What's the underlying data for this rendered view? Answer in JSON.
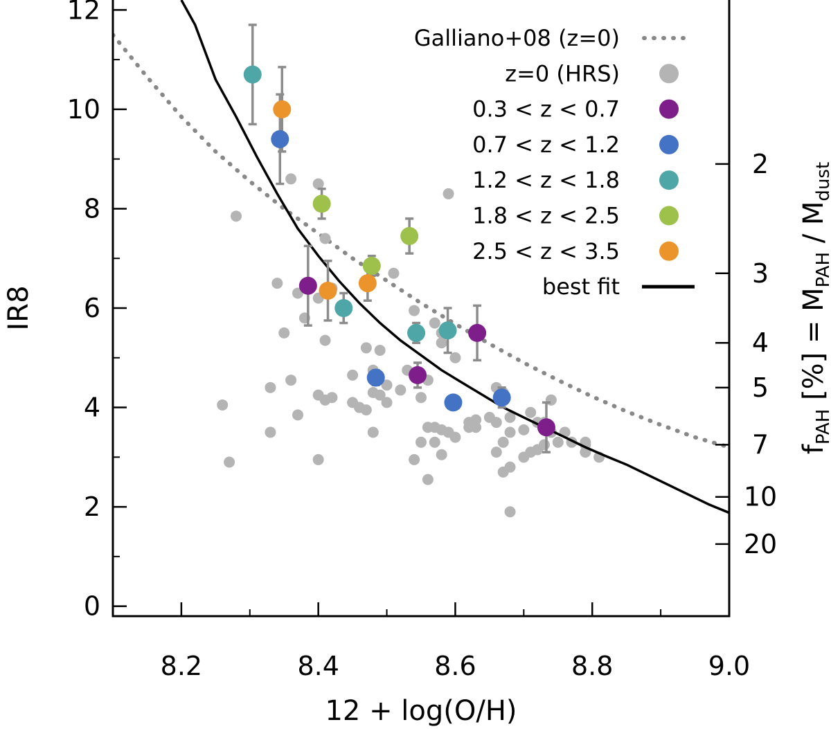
{
  "chart_data": {
    "type": "scatter",
    "xlabel": "12 + log(O/H)",
    "ylabel": "IR8",
    "y2label": {
      "prefix": "f",
      "prefix_sub": "PAH",
      "middle": " [%] = M",
      "middle_sub": "PAH",
      "sep": " / M",
      "end_sub": "dust"
    },
    "xlim": [
      8.1,
      9.0
    ],
    "ylim": [
      -0.2,
      12.2
    ],
    "xticks": [
      8.2,
      8.4,
      8.6,
      8.8,
      9.0
    ],
    "xtick_labels": [
      "8.2",
      "8.4",
      "8.6",
      "8.8",
      "9.0"
    ],
    "yticks": [
      0,
      2,
      4,
      6,
      8,
      10,
      12
    ],
    "ytick_labels": [
      "0",
      "2",
      "4",
      "6",
      "8",
      "10",
      "12"
    ],
    "y2ticks": [
      {
        "label": "2",
        "ir8": 8.9
      },
      {
        "label": "3",
        "ir8": 6.7
      },
      {
        "label": "4",
        "ir8": 5.3
      },
      {
        "label": "5",
        "ir8": 4.4
      },
      {
        "label": "7",
        "ir8": 3.25
      },
      {
        "label": "10",
        "ir8": 2.2
      },
      {
        "label": "20",
        "ir8": 1.25
      }
    ],
    "grid": false,
    "legend_position": "top-right",
    "colors": {
      "hrs": "#b4b4b4",
      "galliano": "#888888",
      "fit": "#000000",
      "errorbar": "#8c8c8c",
      "z1": "#7e1e8a",
      "z2": "#4472c4",
      "z3": "#4fa6a6",
      "z4": "#9dc14b",
      "z5": "#ec942c"
    },
    "series": [
      {
        "name": "Galliano+08 (z=0)",
        "kind": "dotted-line",
        "color": "#888888",
        "x": [
          8.1,
          8.15,
          8.2,
          8.25,
          8.3,
          8.35,
          8.4,
          8.45,
          8.5,
          8.55,
          8.6,
          8.65,
          8.7,
          8.75,
          8.8,
          8.85,
          8.9,
          8.95,
          9.0
        ],
        "y": [
          11.5,
          10.65,
          9.85,
          9.15,
          8.55,
          8.0,
          7.5,
          7.0,
          6.55,
          6.1,
          5.68,
          5.28,
          4.9,
          4.55,
          4.22,
          3.92,
          3.65,
          3.4,
          3.2
        ]
      },
      {
        "name": "z=0 (HRS)",
        "kind": "scatter",
        "color": "#b4b4b4",
        "x": [
          8.26,
          8.27,
          8.28,
          8.33,
          8.33,
          8.34,
          8.35,
          8.36,
          8.36,
          8.37,
          8.37,
          8.38,
          8.4,
          8.4,
          8.4,
          8.4,
          8.41,
          8.41,
          8.41,
          8.42,
          8.42,
          8.45,
          8.45,
          8.46,
          8.47,
          8.47,
          8.48,
          8.48,
          8.48,
          8.49,
          8.49,
          8.5,
          8.5,
          8.51,
          8.52,
          8.53,
          8.54,
          8.54,
          8.55,
          8.55,
          8.56,
          8.56,
          8.56,
          8.57,
          8.57,
          8.57,
          8.58,
          8.58,
          8.58,
          8.58,
          8.59,
          8.59,
          8.6,
          8.6,
          8.62,
          8.62,
          8.63,
          8.63,
          8.65,
          8.66,
          8.66,
          8.66,
          8.67,
          8.67,
          8.67,
          8.68,
          8.68,
          8.68,
          8.68,
          8.7,
          8.7,
          8.71,
          8.71,
          8.72,
          8.72,
          8.73,
          8.73,
          8.74,
          8.74,
          8.75,
          8.76,
          8.77,
          8.79,
          8.79,
          8.81,
          8.79
        ],
        "y": [
          4.05,
          2.9,
          7.85,
          3.5,
          4.4,
          6.5,
          5.5,
          8.6,
          4.55,
          3.85,
          6.3,
          5.8,
          8.5,
          6.2,
          4.25,
          2.95,
          5.35,
          7.4,
          4.15,
          4.2,
          6.4,
          4.1,
          4.65,
          4.0,
          5.2,
          3.95,
          4.3,
          4.75,
          3.5,
          4.25,
          5.15,
          4.1,
          4.45,
          6.7,
          4.35,
          4.75,
          5.95,
          2.95,
          4.2,
          3.3,
          3.6,
          4.55,
          2.55,
          3.6,
          5.7,
          3.3,
          5.5,
          5.3,
          3.55,
          3.05,
          8.3,
          3.5,
          3.4,
          5.0,
          3.7,
          3.6,
          3.6,
          3.75,
          3.8,
          4.4,
          3.7,
          3.1,
          3.3,
          2.7,
          4.3,
          3.8,
          3.5,
          2.8,
          1.9,
          3.0,
          3.55,
          3.1,
          3.9,
          3.7,
          3.15,
          3.25,
          3.7,
          4.15,
          3.5,
          3.3,
          3.5,
          3.3,
          3.25,
          3.3,
          3.0,
          3.1
        ]
      },
      {
        "name": "0.3 < z < 0.7",
        "kind": "scatter-err",
        "color": "#7e1e8a",
        "x": [
          8.385,
          8.545,
          8.632,
          8.733
        ],
        "y": [
          6.45,
          4.65,
          5.5,
          3.6
        ],
        "yerr": [
          0.8,
          0.25,
          0.55,
          0.5
        ]
      },
      {
        "name": "0.7 < z < 1.2",
        "kind": "scatter-err",
        "color": "#4472c4",
        "x": [
          8.344,
          8.484,
          8.597,
          8.668
        ],
        "y": [
          9.4,
          4.6,
          4.1,
          4.2
        ],
        "yerr": [
          0.9,
          0.15,
          0.1,
          0.2
        ]
      },
      {
        "name": "1.2 < z < 1.8",
        "kind": "scatter-err",
        "color": "#4fa6a6",
        "x": [
          8.304,
          8.437,
          8.543,
          8.589
        ],
        "y": [
          10.7,
          6.0,
          5.5,
          5.55
        ],
        "yerr": [
          1.0,
          0.3,
          0.2,
          0.45
        ]
      },
      {
        "name": "1.8 < z < 2.5",
        "kind": "scatter-err",
        "color": "#9dc14b",
        "x": [
          8.405,
          8.478,
          8.533
        ],
        "y": [
          8.1,
          6.85,
          7.45
        ],
        "yerr": [
          0.3,
          0.2,
          0.35
        ]
      },
      {
        "name": "2.5 < z < 3.5",
        "kind": "scatter-err",
        "color": "#ec942c",
        "x": [
          8.347,
          8.414,
          8.472
        ],
        "y": [
          10.0,
          6.35,
          6.5
        ],
        "yerr": [
          0.85,
          0.6,
          0.35
        ]
      },
      {
        "name": "best fit",
        "kind": "line",
        "color": "#000000",
        "x": [
          8.2,
          8.22,
          8.25,
          8.28,
          8.31,
          8.34,
          8.37,
          8.4,
          8.43,
          8.46,
          8.49,
          8.52,
          8.55,
          8.58,
          8.61,
          8.64,
          8.67,
          8.7,
          8.73,
          8.76,
          8.79,
          8.82,
          8.85,
          8.88,
          8.91,
          8.94,
          8.97,
          9.0
        ],
        "y": [
          12.2,
          11.7,
          10.6,
          9.85,
          9.05,
          8.3,
          7.6,
          7.05,
          6.55,
          6.1,
          5.7,
          5.35,
          5.05,
          4.75,
          4.5,
          4.25,
          4.0,
          3.8,
          3.6,
          3.4,
          3.2,
          3.02,
          2.85,
          2.65,
          2.45,
          2.25,
          2.05,
          1.88
        ]
      }
    ]
  }
}
